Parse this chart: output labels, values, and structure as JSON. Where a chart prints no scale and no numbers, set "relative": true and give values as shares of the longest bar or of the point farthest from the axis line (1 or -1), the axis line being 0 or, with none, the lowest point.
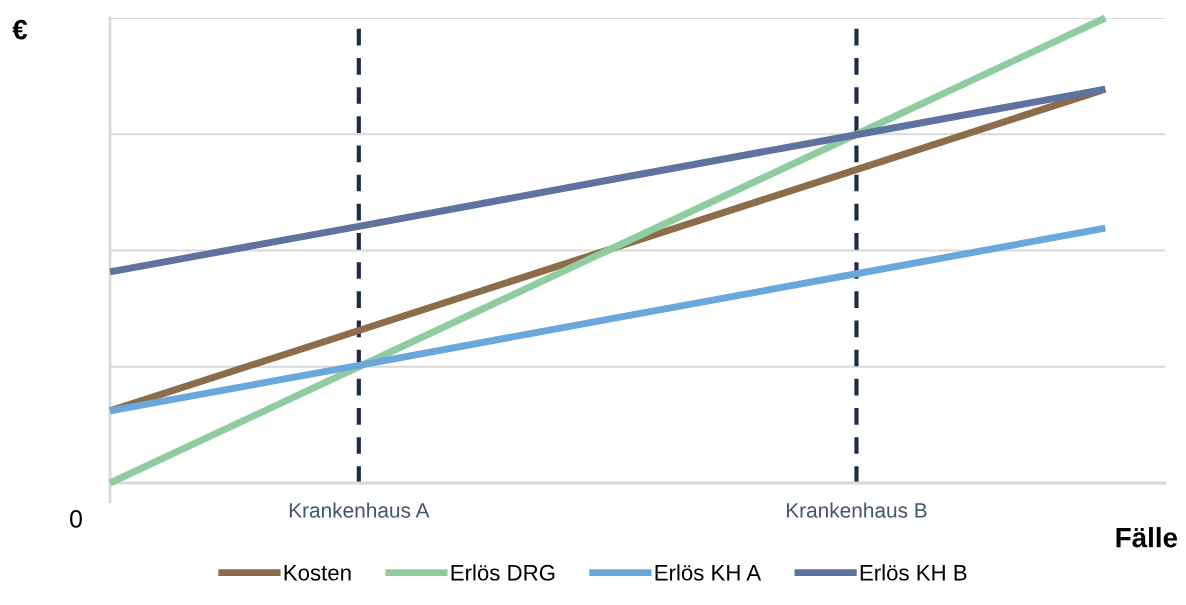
{
  "chart_data": {
    "type": "line",
    "relative": true,
    "ylabel": "€",
    "xlabel": "Fälle",
    "categories": [
      null,
      "Krankenhaus A",
      null,
      "Krankenhaus B",
      null
    ],
    "series": [
      {
        "name": "Kosten",
        "color": "#8b6d4c",
        "values": [
          0.155,
          0.328,
          0.501,
          0.674,
          0.847
        ]
      },
      {
        "name": "Erlös DRG",
        "color": "#8fcca0",
        "values": [
          0,
          0.25,
          0.5,
          0.75,
          1
        ]
      },
      {
        "name": "Erlös KH A",
        "color": "#6aa8dc",
        "values": [
          0.155,
          0.253,
          0.352,
          0.45,
          0.548
        ]
      },
      {
        "name": "Erlös KH B",
        "color": "#5f73a0",
        "values": [
          0.454,
          0.552,
          0.651,
          0.749,
          0.847
        ]
      }
    ],
    "ref_lines": [
      {
        "axis": "x",
        "value": "Krankenhaus A",
        "color": "#1f2a44",
        "line_style": "dashed"
      },
      {
        "axis": "x",
        "value": "Krankenhaus B",
        "color": "#1f2a44",
        "line_style": "dashed"
      }
    ],
    "annotations": [
      "0"
    ],
    "grid": "y",
    "legend": "bottom",
    "line_style": "solid",
    "marker": "none"
  }
}
